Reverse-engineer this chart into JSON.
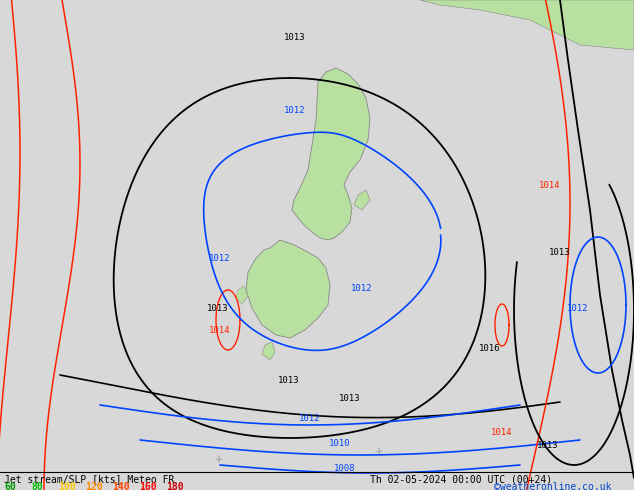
{
  "title": "Jet stream/SLP [kts] Meteo FR",
  "date_label": "Th 02-05-2024 00:00 UTC (00+24)",
  "copyright": "©weatheronline.co.uk",
  "bg_color": "#d8d8d8",
  "land_color": "#b8e0a0",
  "land_edge_color": "#888888",
  "black_iso": "#000000",
  "red_iso": "#ff2200",
  "blue_iso": "#0044ff",
  "legend_entries": [
    {
      "val": "60",
      "color": "#009900"
    },
    {
      "val": "80",
      "color": "#00bb00"
    },
    {
      "val": "100",
      "color": "#ffcc00"
    },
    {
      "val": "120",
      "color": "#ff8800"
    },
    {
      "val": "140",
      "color": "#ff4400"
    },
    {
      "val": "160",
      "color": "#ff0000"
    },
    {
      "val": "180",
      "color": "#cc0000"
    }
  ],
  "fig_w": 6.34,
  "fig_h": 4.9,
  "dpi": 100
}
